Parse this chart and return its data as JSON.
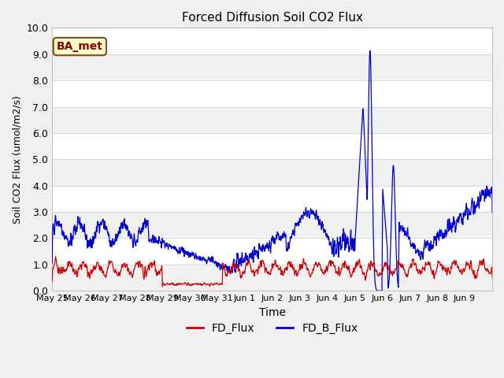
{
  "title": "Forced Diffusion Soil CO2 Flux",
  "xlabel": "Time",
  "ylabel": "Soil CO2 Flux (umol/m2/s)",
  "ylim": [
    0.0,
    10.0
  ],
  "yticks": [
    0.0,
    1.0,
    2.0,
    3.0,
    4.0,
    5.0,
    6.0,
    7.0,
    8.0,
    9.0,
    10.0
  ],
  "xtick_labels": [
    "May 25",
    "May 26",
    "May 27",
    "May 28",
    "May 29",
    "May 30",
    "May 31",
    "Jun 1",
    "Jun 2",
    "Jun 3",
    "Jun 4",
    "Jun 5",
    "Jun 6",
    "Jun 7",
    "Jun 8",
    "Jun 9"
  ],
  "background_color": "#f0f0f0",
  "axes_bg_color": "#ffffff",
  "band_color_a": "#f0f0f0",
  "band_color_b": "#ffffff",
  "fd_flux_color": "#cc0000",
  "fd_b_flux_color": "#0000cc",
  "annotation_text": "BA_met",
  "annotation_bg": "#ffffcc",
  "annotation_border": "#cc0000",
  "legend_entries": [
    "FD_Flux",
    "FD_B_Flux"
  ],
  "figsize": [
    6.4,
    4.8
  ],
  "dpi": 100
}
